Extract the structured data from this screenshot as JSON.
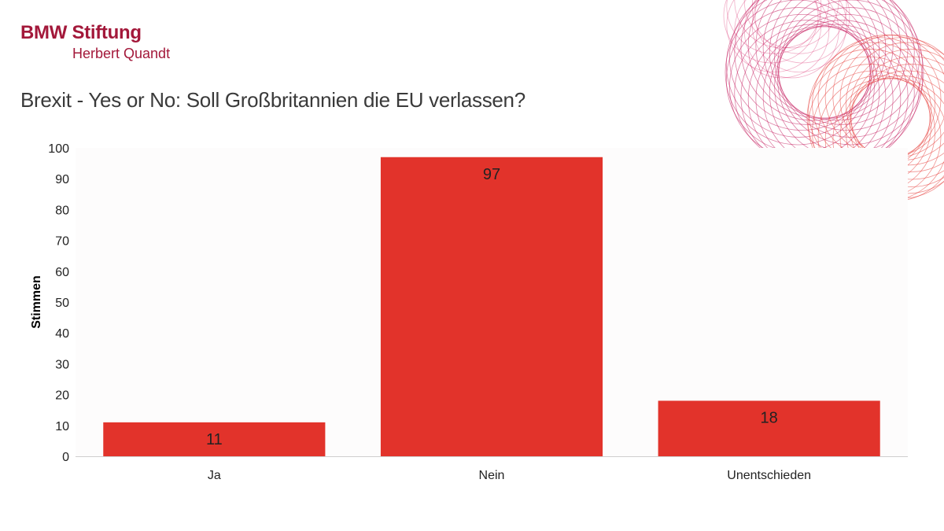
{
  "logo": {
    "main": "BMW Stiftung",
    "sub": "Herbert Quandt"
  },
  "brand_color": "#a3183a",
  "bar_color": "#e2332b",
  "chart_data": {
    "type": "bar",
    "title": "Brexit - Yes or No: Soll Großbritannien die EU verlassen?",
    "categories": [
      "Ja",
      "Nein",
      "Unentschieden"
    ],
    "values": [
      11,
      97,
      18
    ],
    "xlabel": "",
    "ylabel": "Stimmen",
    "ylim": [
      0,
      100
    ],
    "yticks": [
      0,
      10,
      20,
      30,
      40,
      50,
      60,
      70,
      80,
      90,
      100
    ],
    "grid": false,
    "data_labels": true
  }
}
